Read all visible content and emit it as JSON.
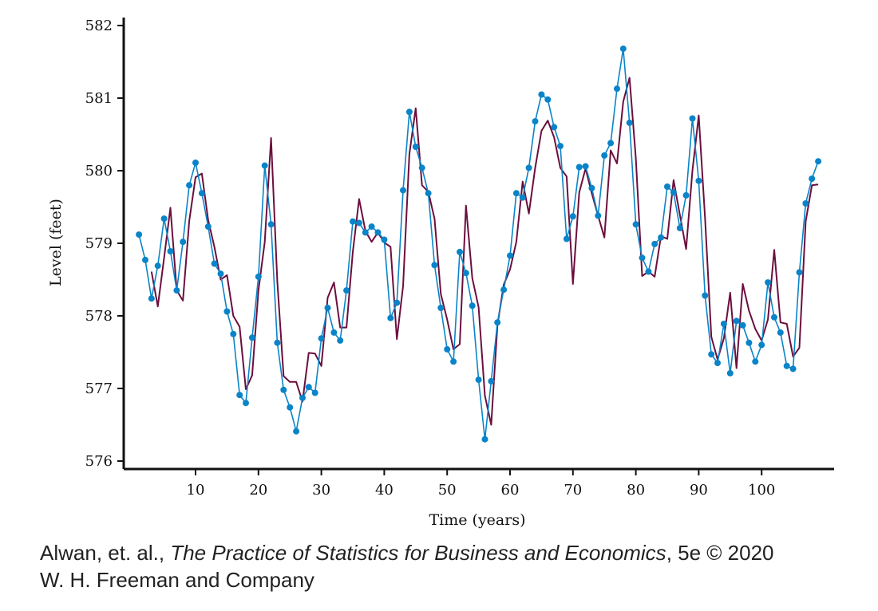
{
  "chart_data": {
    "type": "line",
    "xlabel": "Time (years)",
    "ylabel": "Level (feet)",
    "xlim": [
      0,
      110
    ],
    "ylim": [
      576,
      582
    ],
    "x_ticks": [
      10,
      20,
      30,
      40,
      50,
      60,
      70,
      80,
      90,
      100
    ],
    "y_ticks": [
      576,
      577,
      578,
      579,
      580,
      581,
      582
    ],
    "grid": false,
    "series": [
      {
        "color": "#0a84c8",
        "markers": true,
        "x_start": 1,
        "values": [
          579.12,
          578.77,
          578.24,
          578.69,
          579.34,
          578.89,
          578.35,
          579.02,
          579.8,
          580.11,
          579.69,
          579.23,
          578.72,
          578.58,
          578.06,
          577.75,
          576.91,
          576.8,
          577.7,
          578.54,
          580.07,
          579.26,
          577.63,
          576.98,
          576.74,
          576.41,
          576.87,
          577.02,
          576.94,
          577.69,
          578.11,
          577.77,
          577.66,
          578.35,
          579.3,
          579.28,
          579.15,
          579.23,
          579.15,
          579.05,
          577.97,
          578.18,
          579.73,
          580.81,
          580.33,
          580.04,
          579.69,
          578.7,
          578.11,
          577.54,
          577.37,
          578.88,
          578.59,
          578.14,
          577.12,
          576.3,
          577.1,
          577.91,
          578.36,
          578.83,
          579.69,
          579.63,
          580.04,
          580.68,
          581.05,
          580.98,
          580.6,
          580.34,
          579.06,
          579.37,
          580.05,
          580.06,
          579.76,
          579.38,
          580.21,
          580.38,
          581.13,
          581.68,
          580.66,
          579.26,
          578.8,
          578.61,
          578.99,
          579.08,
          579.78,
          579.7,
          579.21,
          579.66,
          580.72,
          579.86,
          578.28,
          577.47,
          577.35,
          577.89,
          577.21,
          577.93,
          577.87,
          577.63,
          577.37,
          577.6,
          578.46,
          577.98,
          577.77,
          577.31,
          577.27,
          578.6,
          579.55,
          579.89,
          580.13
        ]
      },
      {
        "color": "#6b0f3e",
        "markers": false,
        "x_start": 3,
        "values": [
          578.61,
          578.13,
          578.8,
          579.49,
          578.35,
          578.21,
          579.31,
          579.91,
          579.96,
          579.32,
          578.95,
          578.5,
          578.56,
          578.0,
          577.85,
          576.99,
          577.18,
          578.35,
          579.02,
          580.45,
          578.48,
          577.17,
          577.09,
          577.09,
          576.82,
          577.49,
          577.48,
          577.31,
          578.25,
          578.46,
          577.84,
          577.84,
          578.88,
          579.61,
          579.17,
          579.02,
          579.15,
          579.01,
          578.95,
          577.68,
          578.41,
          580.23,
          580.86,
          579.8,
          579.71,
          579.34,
          578.3,
          577.95,
          577.54,
          577.61,
          579.52,
          578.52,
          578.12,
          576.9,
          576.5,
          577.87,
          578.43,
          578.64,
          579.02,
          579.85,
          579.41,
          580.04,
          580.55,
          580.69,
          580.46,
          580.04,
          579.92,
          578.44,
          579.7,
          580.03,
          579.69,
          579.38,
          579.08,
          580.28,
          580.1,
          580.95,
          581.28,
          580.17,
          578.55,
          578.61,
          578.54,
          579.1,
          579.06,
          579.87,
          579.39,
          578.92,
          580.0,
          580.76,
          579.35,
          577.71,
          577.4,
          577.69,
          578.32,
          577.28,
          578.44,
          578.07,
          577.82,
          577.66,
          577.95,
          578.91,
          577.91,
          577.89,
          577.44,
          577.56,
          579.3,
          579.8,
          579.81
        ]
      }
    ]
  },
  "credit": {
    "author": "Alwan, et. al., ",
    "book_title": "The Practice of Statistics for Business and Economics",
    "edition": ", 5e © 2020",
    "publisher": "W. H. Freeman and Company"
  }
}
